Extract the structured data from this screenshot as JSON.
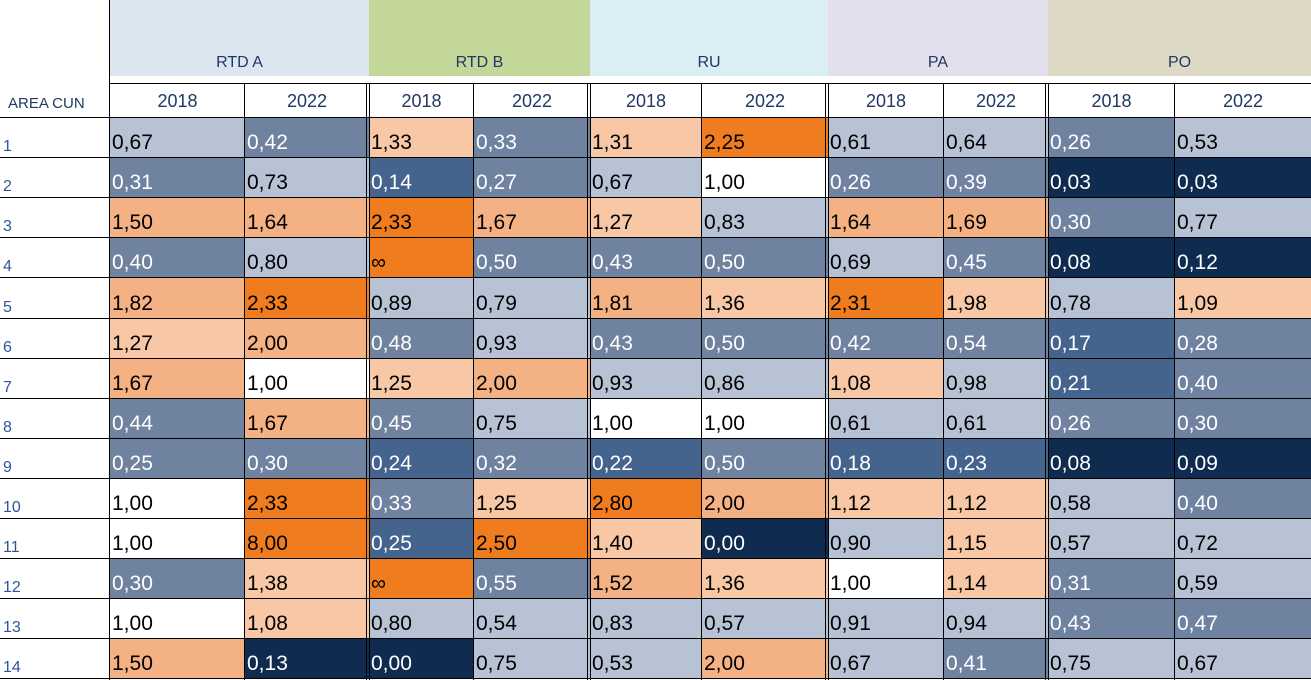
{
  "header": {
    "row_label_title": "AREA CUN",
    "groups": [
      {
        "name": "RTD A",
        "color": "#dce6f1"
      },
      {
        "name": "RTD B",
        "color": "#c4d79b"
      },
      {
        "name": "RU",
        "color": "#daeef3"
      },
      {
        "name": "PA",
        "color": "#e4dfec"
      },
      {
        "name": "PO",
        "color": "#ddd9c4"
      }
    ],
    "years": [
      "2018",
      "2022",
      "2018",
      "2022",
      "2018",
      "2022",
      "2018",
      "2022",
      "2018",
      "2022"
    ]
  },
  "rows": [
    {
      "label": "1",
      "values": [
        "0,67",
        "0,42",
        "1,33",
        "0,33",
        "1,31",
        "2,25",
        "0,61",
        "0,64",
        "0,26",
        "0,53"
      ]
    },
    {
      "label": "2",
      "values": [
        "0,31",
        "0,73",
        "0,14",
        "0,27",
        "0,67",
        "1,00",
        "0,26",
        "0,39",
        "0,03",
        "0,03"
      ]
    },
    {
      "label": "3",
      "values": [
        "1,50",
        "1,64",
        "2,33",
        "1,67",
        "1,27",
        "0,83",
        "1,64",
        "1,69",
        "0,30",
        "0,77"
      ]
    },
    {
      "label": "4",
      "values": [
        "0,40",
        "0,80",
        "∞",
        "0,50",
        "0,43",
        "0,50",
        "0,69",
        "0,45",
        "0,08",
        "0,12"
      ]
    },
    {
      "label": "5",
      "values": [
        "1,82",
        "2,33",
        "0,89",
        "0,79",
        "1,81",
        "1,36",
        "2,31",
        "1,98",
        "0,78",
        "1,09"
      ]
    },
    {
      "label": "6",
      "values": [
        "1,27",
        "2,00",
        "0,48",
        "0,93",
        "0,43",
        "0,50",
        "0,42",
        "0,54",
        "0,17",
        "0,28"
      ]
    },
    {
      "label": "7",
      "values": [
        "1,67",
        "1,00",
        "1,25",
        "2,00",
        "0,93",
        "0,86",
        "1,08",
        "0,98",
        "0,21",
        "0,40"
      ]
    },
    {
      "label": "8",
      "values": [
        "0,44",
        "1,67",
        "0,45",
        "0,75",
        "1,00",
        "1,00",
        "0,61",
        "0,61",
        "0,26",
        "0,30"
      ]
    },
    {
      "label": "9",
      "values": [
        "0,25",
        "0,30",
        "0,24",
        "0,32",
        "0,22",
        "0,50",
        "0,18",
        "0,23",
        "0,08",
        "0,09"
      ]
    },
    {
      "label": "10",
      "values": [
        "1,00",
        "2,33",
        "0,33",
        "1,25",
        "2,80",
        "2,00",
        "1,12",
        "1,12",
        "0,58",
        "0,40"
      ]
    },
    {
      "label": "11",
      "values": [
        "1,00",
        "8,00",
        "0,25",
        "2,50",
        "1,40",
        "0,00",
        "0,90",
        "1,15",
        "0,57",
        "0,72"
      ]
    },
    {
      "label": "12",
      "values": [
        "0,30",
        "1,38",
        "∞",
        "0,55",
        "1,52",
        "1,36",
        "1,00",
        "1,14",
        "0,31",
        "0,59"
      ]
    },
    {
      "label": "13",
      "values": [
        "1,00",
        "1,08",
        "0,80",
        "0,54",
        "0,83",
        "0,57",
        "0,91",
        "0,94",
        "0,43",
        "0,47"
      ]
    },
    {
      "label": "14",
      "values": [
        "1,50",
        "0,13",
        "0,00",
        "0,75",
        "0,53",
        "2,00",
        "0,67",
        "0,41",
        "0,75",
        "0,67"
      ]
    }
  ],
  "fills": [
    [
      "#b7c2d4",
      "#6f82a0",
      "#f8c8a6",
      "#6f82a0",
      "#f8c8a6",
      "#ef7d20",
      "#b7c2d4",
      "#b7c2d4",
      "#6f82a0",
      "#b7c2d4"
    ],
    [
      "#6f82a0",
      "#b7c2d4",
      "#44648e",
      "#6f82a0",
      "#b7c2d4",
      "#ffffff",
      "#6f82a0",
      "#6f82a0",
      "#0f2b50",
      "#0f2b50"
    ],
    [
      "#f4b183",
      "#f4b183",
      "#ef7d20",
      "#f4b183",
      "#f8c8a6",
      "#b7c2d4",
      "#f4b183",
      "#f4b183",
      "#6f82a0",
      "#b7c2d4"
    ],
    [
      "#6f82a0",
      "#b7c2d4",
      "#ef7d20",
      "#6f82a0",
      "#6f82a0",
      "#6f82a0",
      "#b7c2d4",
      "#6f82a0",
      "#0f2b50",
      "#0f2b50"
    ],
    [
      "#f4b183",
      "#ef7d20",
      "#b7c2d4",
      "#b7c2d4",
      "#f4b183",
      "#f8c8a6",
      "#ef7d20",
      "#f8c8a6",
      "#b7c2d4",
      "#f8c8a6"
    ],
    [
      "#f8c8a6",
      "#f4b183",
      "#6f82a0",
      "#b7c2d4",
      "#6f82a0",
      "#6f82a0",
      "#6f82a0",
      "#6f82a0",
      "#44648e",
      "#6f82a0"
    ],
    [
      "#f4b183",
      "#ffffff",
      "#f8c8a6",
      "#f4b183",
      "#b7c2d4",
      "#b7c2d4",
      "#f8c8a6",
      "#b7c2d4",
      "#44648e",
      "#6f82a0"
    ],
    [
      "#6f82a0",
      "#f4b183",
      "#6f82a0",
      "#b7c2d4",
      "#ffffff",
      "#ffffff",
      "#b7c2d4",
      "#b7c2d4",
      "#6f82a0",
      "#6f82a0"
    ],
    [
      "#6f82a0",
      "#6f82a0",
      "#44648e",
      "#6f82a0",
      "#44648e",
      "#6f82a0",
      "#44648e",
      "#44648e",
      "#0f2b50",
      "#0f2b50"
    ],
    [
      "#ffffff",
      "#ef7d20",
      "#6f82a0",
      "#f8c8a6",
      "#ef7d20",
      "#f4b183",
      "#f8c8a6",
      "#f8c8a6",
      "#b7c2d4",
      "#6f82a0"
    ],
    [
      "#ffffff",
      "#ef7d20",
      "#44648e",
      "#ef7d20",
      "#f8c8a6",
      "#0f2b50",
      "#b7c2d4",
      "#f8c8a6",
      "#b7c2d4",
      "#b7c2d4"
    ],
    [
      "#6f82a0",
      "#f8c8a6",
      "#ef7d20",
      "#6f82a0",
      "#f4b183",
      "#f8c8a6",
      "#ffffff",
      "#f8c8a6",
      "#6f82a0",
      "#b7c2d4"
    ],
    [
      "#ffffff",
      "#f8c8a6",
      "#b7c2d4",
      "#b7c2d4",
      "#b7c2d4",
      "#b7c2d4",
      "#b7c2d4",
      "#b7c2d4",
      "#6f82a0",
      "#6f82a0"
    ],
    [
      "#f4b183",
      "#0f2b50",
      "#0f2b50",
      "#b7c2d4",
      "#b7c2d4",
      "#f4b183",
      "#b7c2d4",
      "#6f82a0",
      "#b7c2d4",
      "#b7c2d4"
    ]
  ],
  "text_colors": {
    "dark": "#000000",
    "light": "#ffffff",
    "muted": "#2f5597"
  }
}
